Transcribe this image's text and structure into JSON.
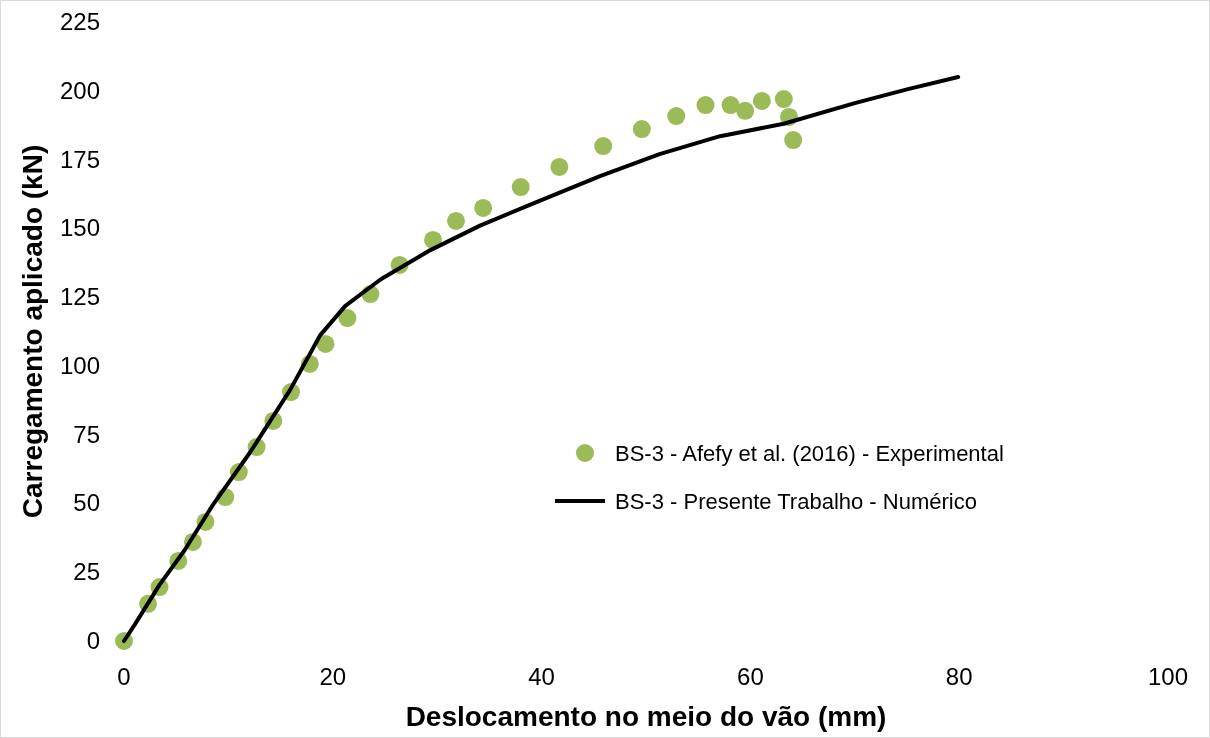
{
  "chart_data": {
    "type": "scatter",
    "xlabel": "Deslocamento no meio do vão (mm)",
    "ylabel": "Carregamento aplicado (kN)",
    "xlim": [
      0,
      100
    ],
    "xticks": [
      0,
      20,
      40,
      60,
      80,
      100
    ],
    "ylim": [
      0,
      225
    ],
    "yticks": [
      0,
      25,
      50,
      75,
      100,
      125,
      150,
      175,
      200,
      225
    ],
    "grid": false,
    "legend": "right",
    "series": [
      {
        "name": "BS-3 - Afefy et al. (2016) - Experimental",
        "marker": "circle",
        "color": "#9bbb59",
        "x": [
          0,
          2.3,
          3.4,
          5.2,
          6.6,
          7.8,
          9.7,
          11,
          12.7,
          14.3,
          16,
          17.8,
          19.3,
          21.4,
          23.6,
          26.4,
          29.6,
          31.8,
          34.4,
          38,
          41.7,
          45.9,
          49.6,
          52.9,
          55.7,
          58.1,
          59.5,
          61.1,
          63.2,
          63.7,
          64.1
        ],
        "values": [
          0,
          13.5,
          19.6,
          29.1,
          36,
          43.3,
          52.3,
          61.4,
          70.5,
          80,
          90.5,
          100.7,
          108,
          117.4,
          126.1,
          136.7,
          145.8,
          152.7,
          157.4,
          165,
          172.3,
          179.9,
          186.1,
          190.8,
          194.8,
          194.8,
          192.7,
          196.3,
          197,
          190.5,
          182.1
        ]
      },
      {
        "name": "BS-3 - Presente Trabalho - Numérico",
        "type": "line",
        "marker": "none",
        "line_style": "solid",
        "color": "#000000",
        "x": [
          0,
          1,
          3.4,
          5.8,
          8.5,
          12.1,
          15.9,
          18.8,
          21.2,
          24.6,
          29.3,
          34.1,
          39.8,
          45.6,
          51.3,
          57.1,
          63.2,
          70,
          75,
          79.9
        ],
        "values": [
          0,
          5.8,
          20.4,
          33,
          49.4,
          68.7,
          91.2,
          111.2,
          121.8,
          131.5,
          142,
          151,
          160,
          169,
          177,
          183.5,
          188,
          195.5,
          200.5,
          205
        ]
      }
    ]
  }
}
